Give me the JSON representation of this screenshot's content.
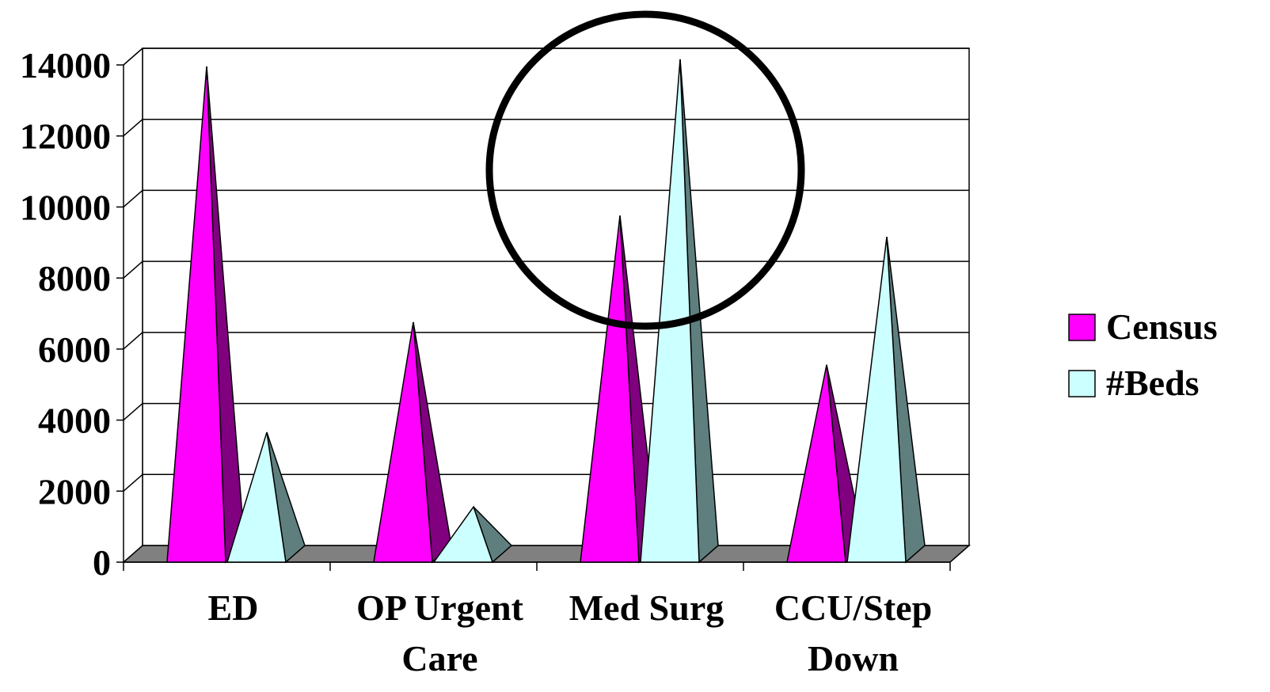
{
  "chart_data": {
    "type": "bar",
    "shape": "3d-cone",
    "categories": [
      [
        "ED"
      ],
      [
        "OP Urgent",
        "Care"
      ],
      [
        "Med Surg"
      ],
      [
        "CCU/Step",
        "Down"
      ]
    ],
    "series": [
      {
        "name": "Census",
        "values": [
          13400,
          6200,
          9200,
          5000
        ],
        "color": "#ff00ff",
        "shade": "#800080"
      },
      {
        "name": "#Beds",
        "values": [
          3100,
          1000,
          13600,
          8600
        ],
        "color": "#ccffff",
        "shade": "#5f7f7f"
      }
    ],
    "y_ticks": [
      "0",
      "2000",
      "4000",
      "6000",
      "8000",
      "10000",
      "12000",
      "14000"
    ],
    "ylim": [
      0,
      14000
    ],
    "grid": true,
    "legend_position": "right",
    "annotation": "circle highlighting Med Surg"
  }
}
